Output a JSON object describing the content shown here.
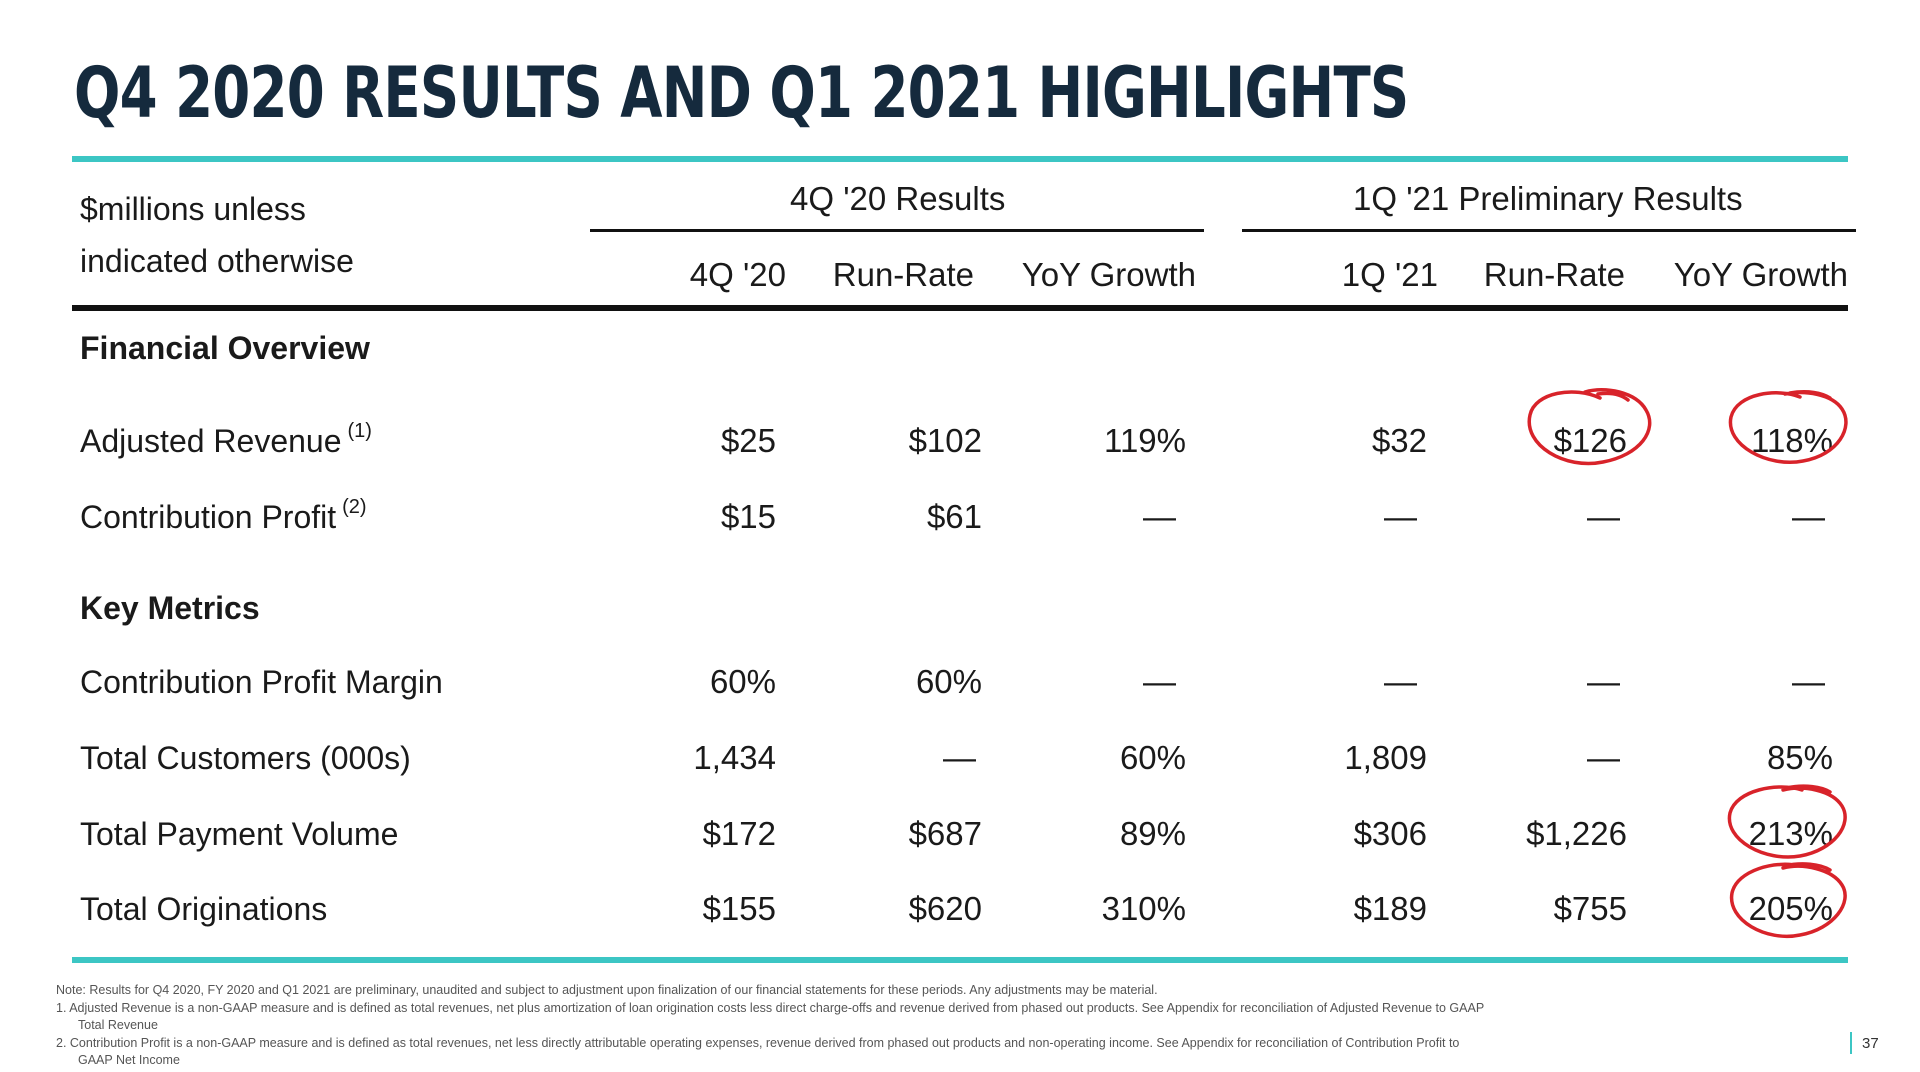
{
  "title": "Q4 2020 RESULTS AND Q1 2021 HIGHLIGHTS",
  "header": {
    "units_line1": "$millions unless",
    "units_line2": "indicated otherwise",
    "group_q4": "4Q '20 Results",
    "group_q1": "1Q '21 Preliminary Results",
    "columns": [
      "4Q '20",
      "Run-Rate",
      "YoY Growth",
      "1Q '21",
      "Run-Rate",
      "YoY Growth"
    ]
  },
  "sections": {
    "financial_overview": "Financial Overview",
    "key_metrics": "Key Metrics"
  },
  "rows": [
    {
      "label": "Adjusted Revenue",
      "note": "(1)",
      "values": [
        "$25",
        "$102",
        "119%",
        "$32",
        "$126",
        "118%"
      ]
    },
    {
      "label": "Contribution Profit",
      "note": "(2)",
      "values": [
        "$15",
        "$61",
        "—",
        "—",
        "—",
        "—"
      ]
    },
    {
      "label": "Contribution Profit Margin",
      "note": "",
      "values": [
        "60%",
        "60%",
        "—",
        "—",
        "—",
        "—"
      ]
    },
    {
      "label": "Total Customers (000s)",
      "note": "",
      "values": [
        "1,434",
        "—",
        "60%",
        "1,809",
        "—",
        "85%"
      ]
    },
    {
      "label": "Total Payment Volume",
      "note": "",
      "values": [
        "$172",
        "$687",
        "89%",
        "$306",
        "$1,226",
        "213%"
      ]
    },
    {
      "label": "Total Originations",
      "note": "",
      "values": [
        "$155",
        "$620",
        "310%",
        "$189",
        "$755",
        "205%"
      ]
    }
  ],
  "notes": {
    "note": "Note: Results for Q4 2020, FY 2020 and Q1 2021 are preliminary, unaudited and subject to adjustment upon finalization of our financial statements for these periods. Any adjustments may be material.",
    "n1_a": "1.   Adjusted Revenue is a non-GAAP measure and is defined as total revenues, net plus amortization of loan origination costs less direct charge-offs and revenue derived from phased out products. See Appendix for reconciliation of Adjusted Revenue to GAAP",
    "n1_b": "Total Revenue",
    "n2_a": "2.   Contribution Profit is a non-GAAP measure and is defined as total revenues, net less directly attributable operating expenses, revenue derived from phased out products and non-operating income. See Appendix for reconciliation of Contribution Profit to",
    "n2_b": "GAAP Net Income"
  },
  "page_number": "37",
  "colors": {
    "title": "#152a3d",
    "teal": "#3cc6c4",
    "annotation_red": "#d8232a"
  }
}
